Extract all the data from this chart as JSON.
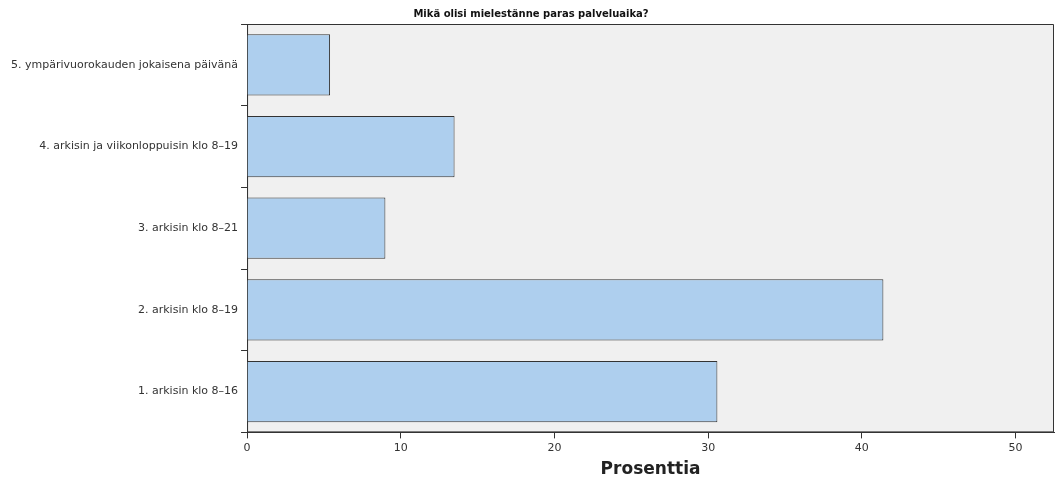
{
  "chart_data": {
    "type": "bar",
    "orientation": "horizontal",
    "title": "Mikä olisi mielestänne paras palveluaika?",
    "xlabel": "Prosenttia",
    "categories": [
      "5. ympärivuorokauden jokaisena päivänä",
      "4. arkisin ja viikonloppuisin klo 8–19",
      "3. arkisin klo 8–21",
      "2. arkisin klo 8–19",
      "1. arkisin klo 8–16"
    ],
    "values": [
      5.4,
      13.5,
      9.0,
      41.4,
      30.6
    ],
    "color": "#aecfee",
    "xlim": [
      0,
      52.5
    ],
    "xticks": [
      0,
      10,
      20,
      30,
      40,
      50
    ],
    "grid": false,
    "legend": false
  }
}
